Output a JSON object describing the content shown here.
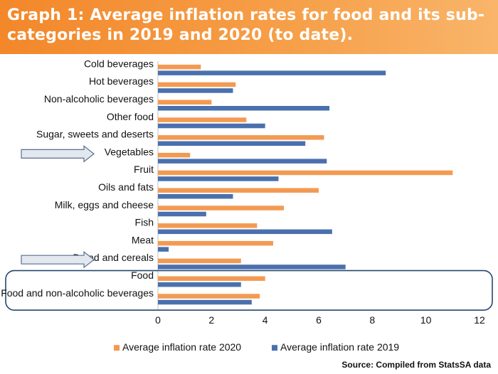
{
  "header": {
    "title": "Graph 1: Average inflation rates for food and its sub-categories in 2019 and 2020 (to date)."
  },
  "source": "Source: Compiled from StatsSA data",
  "colors": {
    "header_bg": "#f3872a",
    "series_2020": "#f39a52",
    "series_2019": "#4a70ad",
    "highlight_box": "#27476e"
  },
  "chart_data": {
    "type": "bar",
    "orientation": "horizontal",
    "categories": [
      "Cold beverages",
      "Hot beverages",
      "Non-alcoholic beverages",
      "Other food",
      "Sugar, sweets and deserts",
      "Vegetables",
      "Fruit",
      "Oils and fats",
      "Milk, eggs and cheese",
      "Fish",
      "Meat",
      "Bread and cereals",
      "Food",
      "Food and non-alcoholic beverages"
    ],
    "series": [
      {
        "name": "Average inflation rate 2020",
        "values": [
          1.6,
          2.9,
          2.0,
          3.3,
          6.2,
          1.2,
          11.0,
          6.0,
          4.7,
          3.7,
          4.3,
          3.1,
          4.0,
          3.8
        ]
      },
      {
        "name": "Average inflation rate 2019",
        "values": [
          8.5,
          2.8,
          6.4,
          4.0,
          5.5,
          6.3,
          4.5,
          2.8,
          1.8,
          6.5,
          0.4,
          7.0,
          3.1,
          3.5
        ]
      }
    ],
    "xlim": [
      0,
      12
    ],
    "xticks": [
      "0",
      "2",
      "4",
      "6",
      "8",
      "10",
      "12"
    ],
    "legend_position": "bottom",
    "arrow_markers": [
      "Vegetables",
      "Bread and cereals"
    ],
    "highlighted_categories": [
      "Food",
      "Food and non-alcoholic beverages"
    ]
  }
}
